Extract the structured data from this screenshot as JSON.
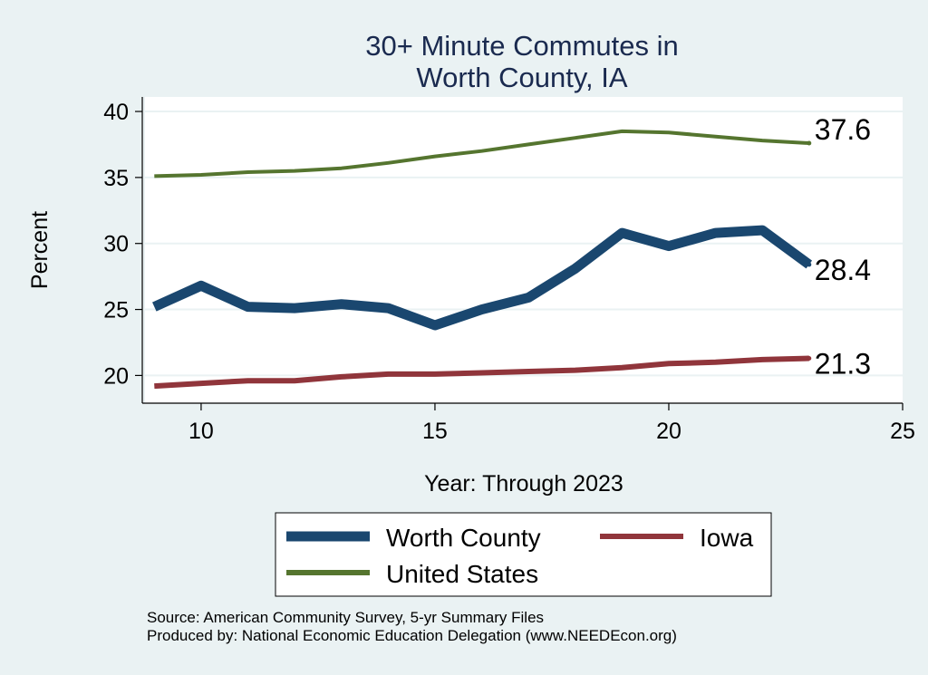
{
  "chart_data": {
    "type": "line",
    "title": [
      "30+ Minute Commutes in",
      "Worth County, IA"
    ],
    "xlabel": "Year: Through 2023",
    "ylabel": "Percent",
    "xlim": [
      8.8,
      25
    ],
    "ylim": [
      17.9,
      41.1
    ],
    "xticks": [
      10,
      15,
      20,
      25
    ],
    "yticks": [
      20,
      25,
      30,
      35,
      40
    ],
    "x": [
      9,
      10,
      11,
      12,
      13,
      14,
      15,
      16,
      17,
      18,
      19,
      20,
      21,
      22,
      23
    ],
    "series": [
      {
        "name": "Worth County",
        "color": "#1a476f",
        "values": [
          25.2,
          26.8,
          25.2,
          25.1,
          25.4,
          25.1,
          23.8,
          25.0,
          25.9,
          28.1,
          30.8,
          29.8,
          30.8,
          31.0,
          28.4
        ],
        "end_label": "28.4"
      },
      {
        "name": "Iowa",
        "color": "#90353b",
        "values": [
          19.2,
          19.4,
          19.6,
          19.6,
          19.9,
          20.1,
          20.1,
          20.2,
          20.3,
          20.4,
          20.6,
          20.9,
          21.0,
          21.2,
          21.3
        ],
        "end_label": "21.3"
      },
      {
        "name": "United States",
        "color": "#55752f",
        "values": [
          35.1,
          35.2,
          35.4,
          35.5,
          35.7,
          36.1,
          36.6,
          37.0,
          37.5,
          38.0,
          38.5,
          38.4,
          38.1,
          37.8,
          37.6
        ],
        "end_label": "37.6"
      }
    ]
  },
  "legend": {
    "entries": [
      "Worth County",
      "Iowa",
      "United States"
    ]
  },
  "footer": {
    "source": "Source: American Community Survey, 5-yr Summary Files",
    "produced": "Produced by: National Economic Education Delegation (www.NEEDEcon.org)"
  }
}
